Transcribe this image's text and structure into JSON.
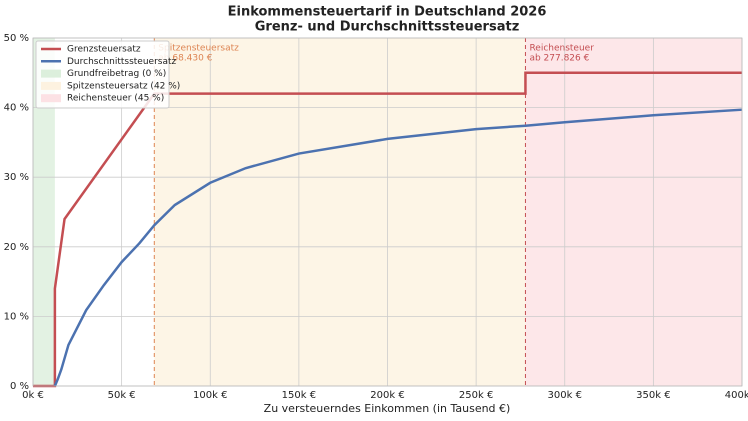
{
  "chart_data": {
    "type": "line",
    "title": "Einkommensteuertarif in Deutschland 2026",
    "subtitle": "Grenz- und Durchschnittssteuersatz",
    "x_label": "Zu versteuerndes Einkommen (in Tausend €)",
    "xlim": [
      0,
      400
    ],
    "xticks": [
      {
        "value": 0,
        "label": "0k €"
      },
      {
        "value": 50,
        "label": "50k €"
      },
      {
        "value": 100,
        "label": "100k €"
      },
      {
        "value": 150,
        "label": "150k €"
      },
      {
        "value": 200,
        "label": "200k €"
      },
      {
        "value": 250,
        "label": "250k €"
      },
      {
        "value": 300,
        "label": "300k €"
      },
      {
        "value": 350,
        "label": "350k €"
      },
      {
        "value": 400,
        "label": "400k €"
      }
    ],
    "ylim": [
      0,
      50
    ],
    "yticks": [
      {
        "value": 0,
        "label": "0 %"
      },
      {
        "value": 10,
        "label": "10 %"
      },
      {
        "value": 20,
        "label": "20 %"
      },
      {
        "value": 30,
        "label": "30 %"
      },
      {
        "value": 40,
        "label": "40 %"
      },
      {
        "value": 50,
        "label": "50 %"
      }
    ],
    "grid": true,
    "legend": "upper left",
    "series": [
      {
        "name": "Grenzsteuersatz",
        "color": "#c44e52",
        "x": [
          0,
          12.348,
          12.348,
          17.799,
          68.43,
          277.826,
          277.826,
          400
        ],
        "values": [
          0,
          0,
          14,
          24,
          42,
          42,
          45,
          45
        ]
      },
      {
        "name": "Durchschnittssteuersatz",
        "color": "#4c72b0",
        "x": [
          12.348,
          14,
          16,
          20,
          30,
          40,
          50,
          60,
          68.43,
          80,
          100,
          120,
          150,
          200,
          250,
          277.826,
          300,
          350,
          400
        ],
        "values": [
          0,
          1.0,
          2.4,
          5.9,
          10.9,
          14.5,
          17.8,
          20.5,
          23.1,
          26,
          29.2,
          31.3,
          33.4,
          35.5,
          36.9,
          37.4,
          37.9,
          38.9,
          39.7
        ]
      }
    ],
    "regions": [
      {
        "name": "Grundfreibetrag (0 %)",
        "start": 0,
        "end": 12.348,
        "color": "#dcefdc"
      },
      {
        "name": "Spitzensteuersatz (42 %)",
        "start": 68.43,
        "end": 277.826,
        "color": "#fdf2e0"
      },
      {
        "name": "Reichensteuer (45 %)",
        "start": 277.826,
        "end": 400,
        "color": "#fce1e4"
      }
    ],
    "annotations": [
      {
        "lines": [
          "Spitzensteuersatz",
          "ab 68.430 €"
        ],
        "x": 68.43,
        "color": "#dd8452"
      },
      {
        "lines": [
          "Reichensteuer",
          "ab 277.826 €"
        ],
        "x": 277.826,
        "color": "#c44e52"
      }
    ]
  }
}
